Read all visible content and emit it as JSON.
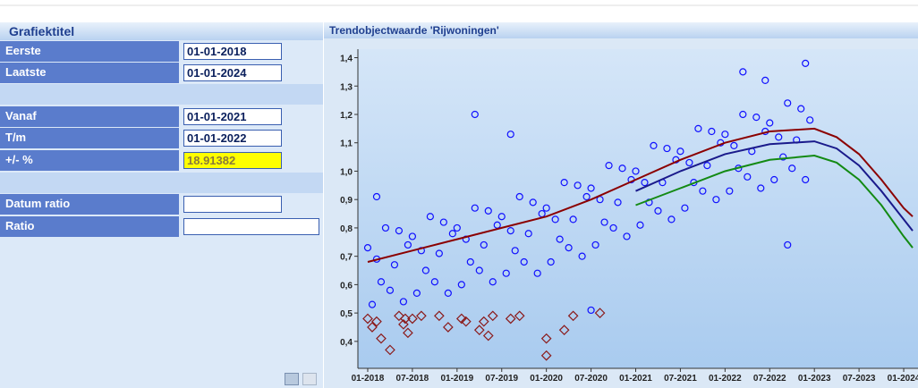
{
  "form": {
    "title": "Grafiektitel",
    "rows": [
      {
        "label": "Eerste",
        "value": "01-01-2018"
      },
      {
        "label": "Laatste",
        "value": "01-01-2024"
      },
      {
        "label": "Vanaf",
        "value": "01-01-2021"
      },
      {
        "label": "T/m",
        "value": "01-01-2022"
      },
      {
        "label": "+/- %",
        "value": "18.91382"
      },
      {
        "label": "Datum ratio"
      },
      {
        "label": "Ratio"
      }
    ]
  },
  "chart_data": {
    "type": "scatter",
    "title": "Trendobjectwaarde 'Rijwoningen'",
    "xlim": [
      2017.89,
      2024.16
    ],
    "ylim": [
      0.305,
      1.43
    ],
    "xticks": [
      {
        "value": 2018,
        "label": "01-2018"
      },
      {
        "value": 2018.5,
        "label": "07-2018"
      },
      {
        "value": 2019,
        "label": "01-2019"
      },
      {
        "value": 2019.5,
        "label": "07-2019"
      },
      {
        "value": 2020,
        "label": "01-2020"
      },
      {
        "value": 2020.5,
        "label": "07-2020"
      },
      {
        "value": 2021,
        "label": "01-2021"
      },
      {
        "value": 2021.5,
        "label": "07-2021"
      },
      {
        "value": 2022,
        "label": "01-2022"
      },
      {
        "value": 2022.5,
        "label": "07-2022"
      },
      {
        "value": 2023,
        "label": "01-2023"
      },
      {
        "value": 2023.5,
        "label": "07-2023"
      },
      {
        "value": 2024,
        "label": "01-2024"
      }
    ],
    "yticks": [
      {
        "value": 0.4,
        "label": "0,4"
      },
      {
        "value": 0.5,
        "label": "0,5"
      },
      {
        "value": 0.6,
        "label": "0,6"
      },
      {
        "value": 0.7,
        "label": "0,7"
      },
      {
        "value": 0.8,
        "label": "0,8"
      },
      {
        "value": 0.9,
        "label": "0,9"
      },
      {
        "value": 1.0,
        "label": "1,0"
      },
      {
        "value": 1.1,
        "label": "1,1"
      },
      {
        "value": 1.2,
        "label": "1,2"
      },
      {
        "value": 1.3,
        "label": "1,3"
      },
      {
        "value": 1.4,
        "label": "1,4"
      }
    ],
    "series": [
      {
        "mode": "markers",
        "marker": "circle",
        "color": "#1010ff",
        "x": [
          2018.0,
          2018.05,
          2018.1,
          2018.15,
          2018.2,
          2018.25,
          2018.3,
          2018.35,
          2018.4,
          2018.45,
          2018.5,
          2018.55,
          2018.6,
          2018.65,
          2018.7,
          2018.75,
          2018.8,
          2018.85,
          2018.9,
          2018.95,
          2019.0,
          2019.05,
          2019.1,
          2019.15,
          2019.2,
          2019.25,
          2019.3,
          2019.35,
          2019.4,
          2019.45,
          2019.5,
          2019.55,
          2019.6,
          2019.65,
          2019.7,
          2019.75,
          2019.8,
          2019.85,
          2019.9,
          2019.95,
          2020.0,
          2020.05,
          2020.1,
          2020.15,
          2020.2,
          2020.25,
          2020.3,
          2020.35,
          2020.4,
          2020.45,
          2020.5,
          2020.55,
          2020.6,
          2020.65,
          2020.7,
          2020.75,
          2020.8,
          2020.85,
          2020.9,
          2020.95,
          2021.0,
          2021.05,
          2021.1,
          2021.15,
          2021.2,
          2021.25,
          2021.3,
          2021.35,
          2021.4,
          2021.45,
          2021.5,
          2021.55,
          2021.6,
          2021.65,
          2021.7,
          2021.75,
          2021.8,
          2021.85,
          2021.9,
          2021.95,
          2022.0,
          2022.05,
          2022.1,
          2022.15,
          2022.2,
          2022.25,
          2022.3,
          2022.35,
          2022.4,
          2022.45,
          2022.5,
          2022.55,
          2022.6,
          2022.65,
          2022.7,
          2022.75,
          2022.8,
          2022.85,
          2022.9,
          2022.95,
          2019.2,
          2019.6,
          2022.2,
          2022.9,
          2022.7,
          2022.45,
          2020.5,
          2018.1
        ],
        "values": [
          0.73,
          0.53,
          0.69,
          0.61,
          0.8,
          0.58,
          0.67,
          0.79,
          0.54,
          0.74,
          0.77,
          0.57,
          0.72,
          0.65,
          0.84,
          0.61,
          0.71,
          0.82,
          0.57,
          0.78,
          0.8,
          0.6,
          0.76,
          0.68,
          0.87,
          0.65,
          0.74,
          0.86,
          0.61,
          0.81,
          0.84,
          0.64,
          0.79,
          0.72,
          0.91,
          0.68,
          0.78,
          0.89,
          0.64,
          0.85,
          0.87,
          0.68,
          0.83,
          0.76,
          0.96,
          0.73,
          0.83,
          0.95,
          0.7,
          0.91,
          0.94,
          0.74,
          0.9,
          0.82,
          1.02,
          0.8,
          0.89,
          1.01,
          0.77,
          0.97,
          1.0,
          0.81,
          0.96,
          0.89,
          1.09,
          0.86,
          0.96,
          1.08,
          0.83,
          1.04,
          1.07,
          0.87,
          1.03,
          0.96,
          1.15,
          0.93,
          1.02,
          1.14,
          0.9,
          1.1,
          1.13,
          0.93,
          1.09,
          1.01,
          1.2,
          0.98,
          1.07,
          1.19,
          0.94,
          1.14,
          1.17,
          0.97,
          1.12,
          1.05,
          1.24,
          1.01,
          1.11,
          1.22,
          0.97,
          1.18,
          1.2,
          1.13,
          1.35,
          1.38,
          0.74,
          1.32,
          0.51,
          0.91
        ]
      },
      {
        "mode": "markers",
        "marker": "diamond",
        "color": "#8b1a1a",
        "x": [
          2018.0,
          2018.05,
          2018.1,
          2018.15,
          2018.25,
          2018.35,
          2018.4,
          2018.42,
          2018.45,
          2018.5,
          2018.6,
          2018.8,
          2018.9,
          2019.05,
          2019.1,
          2019.25,
          2019.3,
          2019.35,
          2019.4,
          2019.6,
          2019.7,
          2020.0,
          2020.0,
          2020.2,
          2020.3,
          2020.6
        ],
        "values": [
          0.48,
          0.45,
          0.47,
          0.41,
          0.37,
          0.49,
          0.46,
          0.48,
          0.43,
          0.48,
          0.49,
          0.49,
          0.45,
          0.48,
          0.47,
          0.44,
          0.47,
          0.42,
          0.49,
          0.48,
          0.49,
          0.35,
          0.41,
          0.44,
          0.49,
          0.5
        ]
      },
      {
        "mode": "line",
        "color": "#8b0000",
        "x": [
          2018,
          2018.5,
          2019,
          2019.5,
          2020,
          2020.5,
          2021,
          2021.5,
          2022,
          2022.5,
          2023,
          2023.25,
          2023.5,
          2023.75,
          2024,
          2024.1
        ],
        "values": [
          0.68,
          0.72,
          0.76,
          0.8,
          0.84,
          0.9,
          0.97,
          1.04,
          1.1,
          1.14,
          1.15,
          1.12,
          1.06,
          0.97,
          0.87,
          0.84
        ]
      },
      {
        "mode": "line",
        "color": "#1a1a8b",
        "x": [
          2021,
          2021.5,
          2022,
          2022.5,
          2023,
          2023.25,
          2023.5,
          2023.75,
          2024,
          2024.1
        ],
        "values": [
          0.93,
          1.0,
          1.06,
          1.095,
          1.105,
          1.08,
          1.02,
          0.93,
          0.83,
          0.79
        ]
      },
      {
        "mode": "line",
        "color": "#138a13",
        "x": [
          2021,
          2021.5,
          2022,
          2022.5,
          2023,
          2023.25,
          2023.5,
          2023.75,
          2024,
          2024.1
        ],
        "values": [
          0.88,
          0.94,
          1.0,
          1.04,
          1.055,
          1.03,
          0.97,
          0.88,
          0.77,
          0.73
        ]
      }
    ]
  }
}
